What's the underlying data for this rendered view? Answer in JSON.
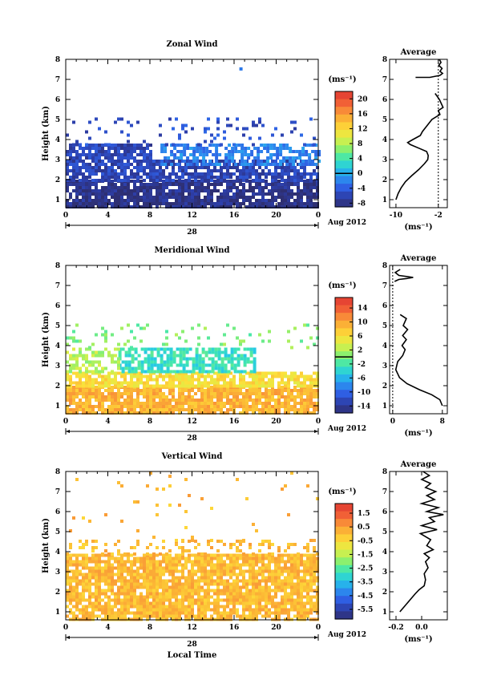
{
  "chart_data": [
    {
      "type": "heatmap",
      "title": "Zonal Wind",
      "ylabel": "Height (km)",
      "xticks": [
        "0",
        "4",
        "8",
        "12",
        "16",
        "20",
        "0"
      ],
      "yticks": [
        "1",
        "2",
        "3",
        "4",
        "5",
        "6",
        "7",
        "8"
      ],
      "xlim": [
        0,
        24
      ],
      "ylim": [
        0.6,
        8
      ],
      "date_day": "28",
      "date_label": "Aug 2012",
      "colorbar": {
        "unit": "(ms⁻¹)",
        "range": [
          -9,
          22
        ],
        "tick_labels": [
          "20",
          "16",
          "12",
          "8",
          "4",
          "0",
          "-4",
          "-8"
        ],
        "tick_values": [
          20,
          16,
          12,
          8,
          4,
          0,
          -4,
          -8
        ],
        "zero_line": 0
      },
      "data_coverage": [
        {
          "y0": 0.65,
          "y1": 2.0,
          "x0": 0,
          "x1": 24,
          "value": -8,
          "density": 0.85
        },
        {
          "y0": 2.0,
          "y1": 3.0,
          "x0": 0,
          "x1": 24,
          "value": -6,
          "density": 0.75
        },
        {
          "y0": 2.8,
          "y1": 3.8,
          "x0": 9,
          "x1": 24,
          "value": -2,
          "density": 0.6
        },
        {
          "y0": 3.0,
          "y1": 3.8,
          "x0": 0,
          "x1": 8,
          "value": -6,
          "density": 0.8
        },
        {
          "y0": 3.8,
          "y1": 5.1,
          "x0": 0,
          "x1": 24,
          "value": -5,
          "density": 0.12
        },
        {
          "y0": 7.5,
          "y1": 7.6,
          "x0": 16.5,
          "x1": 16.8,
          "value": -4,
          "density": 1
        }
      ],
      "profile": {
        "title": "Average",
        "xlabel": "(ms⁻¹)",
        "xticks": [
          "-10",
          "-2"
        ],
        "tick_values": [
          -10,
          -2
        ],
        "xlim": [
          -11.2,
          -0.3
        ],
        "dashed_zero": -2,
        "values": [
          [
            -10.0,
            1.0
          ],
          [
            -9.6,
            1.3
          ],
          [
            -9.0,
            1.6
          ],
          [
            -8.2,
            1.9
          ],
          [
            -7.0,
            2.2
          ],
          [
            -5.7,
            2.5
          ],
          [
            -4.6,
            2.8
          ],
          [
            -4.0,
            3.0
          ],
          [
            -3.9,
            3.2
          ],
          [
            -4.2,
            3.4
          ],
          [
            -5.5,
            3.55
          ],
          [
            -7.3,
            3.75
          ],
          [
            -7.8,
            3.85
          ],
          [
            -6.8,
            4.0
          ],
          [
            -5.4,
            4.2
          ],
          [
            -5.0,
            4.4
          ],
          [
            -4.1,
            4.7
          ],
          [
            -3.2,
            5.0
          ],
          [
            -1.7,
            5.25
          ],
          [
            -2.0,
            5.45
          ],
          [
            -1.1,
            5.6
          ],
          [
            -1.8,
            6.0
          ],
          [
            -2.6,
            6.3
          ]
        ],
        "upper_values": [
          [
            -6.3,
            7.1
          ],
          [
            -3.6,
            7.1
          ],
          [
            -1.7,
            7.2
          ],
          [
            -1.2,
            7.3
          ],
          [
            -1.7,
            7.4
          ],
          [
            -1.3,
            7.55
          ],
          [
            -1.9,
            7.7
          ],
          [
            -1.5,
            7.85
          ],
          [
            -1.8,
            8.0
          ]
        ]
      }
    },
    {
      "type": "heatmap",
      "title": "Meridional Wind",
      "ylabel": "Height (km)",
      "xticks": [
        "0",
        "4",
        "8",
        "12",
        "16",
        "20",
        "0"
      ],
      "yticks": [
        "1",
        "2",
        "3",
        "4",
        "5",
        "6",
        "7",
        "8"
      ],
      "xlim": [
        0,
        24
      ],
      "ylim": [
        0.6,
        8
      ],
      "date_day": "28",
      "date_label": "Aug 2012",
      "colorbar": {
        "unit": "(ms⁻¹)",
        "range": [
          -16,
          17
        ],
        "tick_labels": [
          "14",
          "10",
          "6",
          "2",
          "-2",
          "-6",
          "-10",
          "-14"
        ],
        "tick_values": [
          14,
          10,
          6,
          2,
          -2,
          -6,
          -10,
          -14
        ],
        "zero_line": 0
      },
      "data_coverage": [
        {
          "y0": 0.65,
          "y1": 2.0,
          "x0": 0,
          "x1": 24,
          "value": 9,
          "density": 0.85
        },
        {
          "y0": 2.0,
          "y1": 2.7,
          "x0": 0,
          "x1": 24,
          "value": 6,
          "density": 0.8
        },
        {
          "y0": 2.7,
          "y1": 3.9,
          "x0": 5,
          "x1": 18,
          "value": -3,
          "density": 0.75
        },
        {
          "y0": 2.7,
          "y1": 3.9,
          "x0": 0,
          "x1": 5,
          "value": 2,
          "density": 0.5
        },
        {
          "y0": 3.9,
          "y1": 5.1,
          "x0": 0,
          "x1": 24,
          "value": 0,
          "density": 0.12
        }
      ],
      "profile": {
        "title": "Average",
        "xlabel": "(ms⁻¹)",
        "xticks": [
          "0",
          "8"
        ],
        "tick_values": [
          0,
          8
        ],
        "xlim": [
          -0.5,
          8.8
        ],
        "dashed_zero": 0,
        "values": [
          [
            8.0,
            1.0
          ],
          [
            7.6,
            1.3
          ],
          [
            6.3,
            1.55
          ],
          [
            4.3,
            1.8
          ],
          [
            2.3,
            2.1
          ],
          [
            1.1,
            2.4
          ],
          [
            0.5,
            2.8
          ],
          [
            0.8,
            3.2
          ],
          [
            1.6,
            3.5
          ],
          [
            2.0,
            3.8
          ],
          [
            1.5,
            4.0
          ],
          [
            2.2,
            4.3
          ],
          [
            1.6,
            4.5
          ],
          [
            2.4,
            4.8
          ],
          [
            1.7,
            5.0
          ],
          [
            2.2,
            5.35
          ],
          [
            1.2,
            5.55
          ]
        ],
        "upper_values": [
          [
            0.3,
            7.2
          ],
          [
            1.0,
            7.3
          ],
          [
            2.3,
            7.35
          ],
          [
            3.3,
            7.4
          ],
          [
            1.0,
            7.5
          ],
          [
            0.4,
            7.65
          ],
          [
            1.2,
            7.8
          ]
        ]
      }
    },
    {
      "type": "heatmap",
      "title": "Vertical Wind",
      "ylabel": "Height (km)",
      "xlabel": "Local Time",
      "xticks": [
        "0",
        "4",
        "8",
        "12",
        "16",
        "20",
        "0"
      ],
      "yticks": [
        "1",
        "2",
        "3",
        "4",
        "5",
        "6",
        "7",
        "8"
      ],
      "xlim": [
        0,
        24
      ],
      "ylim": [
        0.6,
        8
      ],
      "date_day": "28",
      "date_label": "Aug 2012",
      "colorbar": {
        "unit": "(ms⁻¹)",
        "range": [
          -6.2,
          2.2
        ],
        "tick_labels": [
          "1.5",
          "0.5",
          "-0.5",
          "-1.5",
          "-2.5",
          "-3.5",
          "-4.5",
          "-5.5"
        ],
        "tick_values": [
          1.5,
          0.5,
          -0.5,
          -1.5,
          -2.5,
          -3.5,
          -4.5,
          -5.5
        ]
      },
      "data_coverage": [
        {
          "y0": 0.65,
          "y1": 3.9,
          "x0": 0,
          "x1": 24,
          "value": 0.05,
          "density": 0.85
        },
        {
          "y0": 3.9,
          "y1": 4.6,
          "x0": 0,
          "x1": 24,
          "value": 0.05,
          "density": 0.25
        },
        {
          "y0": 4.6,
          "y1": 8.0,
          "x0": 0,
          "x1": 24,
          "value": 0.05,
          "density": 0.03
        }
      ],
      "profile": {
        "title": "Average",
        "xlabel": "(ms⁻¹)",
        "xticks": [
          "-0.2",
          "0.0"
        ],
        "tick_values": [
          -0.2,
          0.0
        ],
        "xlim": [
          -0.25,
          0.2
        ],
        "values": [
          [
            -0.17,
            1.0
          ],
          [
            -0.13,
            1.3
          ],
          [
            -0.09,
            1.6
          ],
          [
            -0.05,
            1.9
          ],
          [
            -0.02,
            2.1
          ],
          [
            0.02,
            2.3
          ],
          [
            0.03,
            2.6
          ],
          [
            0.02,
            2.9
          ],
          [
            0.05,
            3.2
          ],
          [
            0.03,
            3.5
          ],
          [
            0.06,
            3.7
          ],
          [
            0.02,
            3.9
          ],
          [
            0.09,
            4.1
          ],
          [
            0.04,
            4.3
          ],
          [
            0.07,
            4.6
          ],
          [
            -0.01,
            4.9
          ],
          [
            0.12,
            5.1
          ],
          [
            0.0,
            5.3
          ],
          [
            0.1,
            5.5
          ],
          [
            0.06,
            5.7
          ],
          [
            0.17,
            5.85
          ],
          [
            0.04,
            6.0
          ],
          [
            0.13,
            6.2
          ],
          [
            0.0,
            6.4
          ],
          [
            0.1,
            6.6
          ],
          [
            0.04,
            6.8
          ],
          [
            0.11,
            7.0
          ],
          [
            0.03,
            7.2
          ],
          [
            0.07,
            7.4
          ],
          [
            0.0,
            7.6
          ],
          [
            0.06,
            7.8
          ],
          [
            0.01,
            8.0
          ]
        ]
      }
    }
  ]
}
